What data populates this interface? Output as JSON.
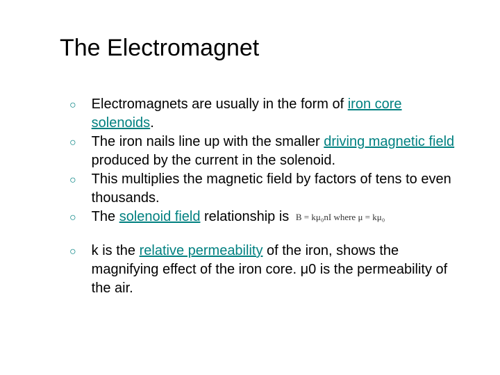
{
  "title": "The Electromagnet",
  "bulletColor": "#008080",
  "linkColor": "#008080",
  "textColor": "#000000",
  "background": "#ffffff",
  "titleFontSize": 34,
  "bodyFontSize": 20,
  "bullets": [
    {
      "pre": "Electromagnets are usually in the form of ",
      "link1": "iron core solenoids",
      "post1": "."
    },
    {
      "pre": "The iron nails line up with the smaller ",
      "link1": "driving magnetic field",
      "post1": " produced by the current in the solenoid."
    },
    {
      "pre": "This multiplies the magnetic field by factors of tens to even thousands."
    },
    {
      "pre": "The ",
      "link1": "solenoid field",
      "post1": " relationship is ",
      "formula": "B = kμ₀nI  where  μ = kμ₀"
    },
    {
      "pre": "k is the ",
      "link1": "relative permeability",
      "post1": " of the iron, shows the magnifying effect of the iron core. μ0 is the permeability of the air."
    }
  ]
}
